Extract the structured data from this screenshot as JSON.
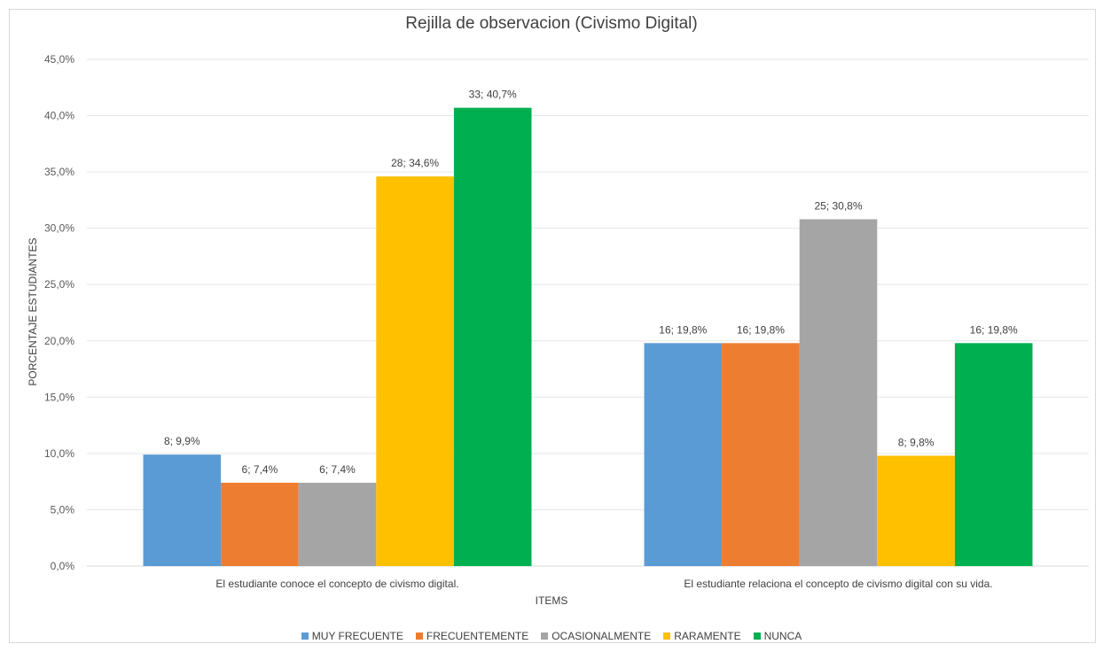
{
  "chart_data": {
    "type": "bar",
    "title": "Rejilla de observacion (Civismo Digital)",
    "xlabel": "ITEMS",
    "ylabel": "PORCENTAJE ESTUDIANTES",
    "ylim": [
      0,
      45
    ],
    "y_ticks": [
      "0,0%",
      "5,0%",
      "10,0%",
      "15,0%",
      "20,0%",
      "25,0%",
      "30,0%",
      "35,0%",
      "40,0%",
      "45,0%"
    ],
    "grid": true,
    "legend_position": "bottom",
    "categories": [
      "El estudiante conoce el concepto de civismo digital.",
      "El estudiante relaciona el concepto de civismo digital con su vida."
    ],
    "series": [
      {
        "name": "MUY FRECUENTE",
        "color": "#5b9bd5",
        "values": [
          9.9,
          19.8
        ],
        "labels": [
          "8; 9,9%",
          "16; 19,8%"
        ]
      },
      {
        "name": "FRECUENTEMENTE",
        "color": "#ed7d31",
        "values": [
          7.4,
          19.8
        ],
        "labels": [
          "6; 7,4%",
          "16; 19,8%"
        ]
      },
      {
        "name": "OCASIONALMENTE",
        "color": "#a5a5a5",
        "values": [
          7.4,
          30.8
        ],
        "labels": [
          "6; 7,4%",
          "25; 30,8%"
        ]
      },
      {
        "name": "RARAMENTE",
        "color": "#ffc000",
        "values": [
          34.6,
          9.8
        ],
        "labels": [
          "28; 34,6%",
          "8; 9,8%"
        ]
      },
      {
        "name": "NUNCA",
        "color": "#00b050",
        "values": [
          40.7,
          19.8
        ],
        "labels": [
          "33; 40,7%",
          "16; 19,8%"
        ]
      }
    ]
  }
}
